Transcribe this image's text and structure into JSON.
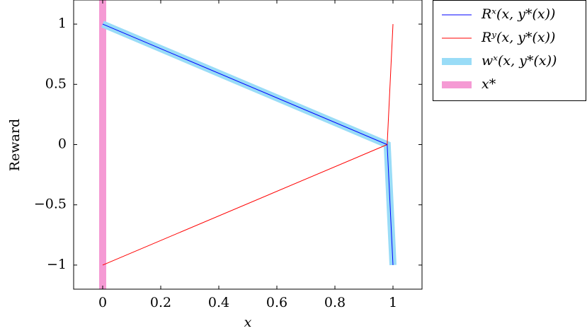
{
  "chart_data": {
    "type": "line",
    "xlabel": "x",
    "ylabel": "Reward",
    "xlim": [
      -0.1,
      1.1
    ],
    "ylim": [
      -1.2,
      1.2
    ],
    "xticks": [
      0,
      0.2,
      0.4,
      0.6,
      0.8,
      1
    ],
    "yticks": [
      {
        "value": -1,
        "label": "−1"
      },
      {
        "value": -0.5,
        "label": "−0.5"
      },
      0,
      0.5,
      1
    ],
    "legend": "outside-right",
    "series": [
      {
        "name": "Rˣ(x, y*(x))",
        "color": "#0000ff",
        "x": [
          0,
          0.98,
          1
        ],
        "values": [
          1,
          0,
          -1
        ]
      },
      {
        "name": "Rʸ(x, y*(x))",
        "color": "#ff0000",
        "x": [
          0,
          0.98,
          1
        ],
        "values": [
          -1,
          0,
          1
        ]
      },
      {
        "name": "wˣ(x, y*(x))",
        "color": "#99dcf7",
        "x": [
          0,
          0.98,
          1
        ],
        "values": [
          1,
          0,
          -1
        ]
      },
      {
        "name": "x*",
        "color": "#f59ad4",
        "x": [
          0,
          0
        ],
        "values": [
          -1.2,
          1.2
        ]
      }
    ]
  }
}
